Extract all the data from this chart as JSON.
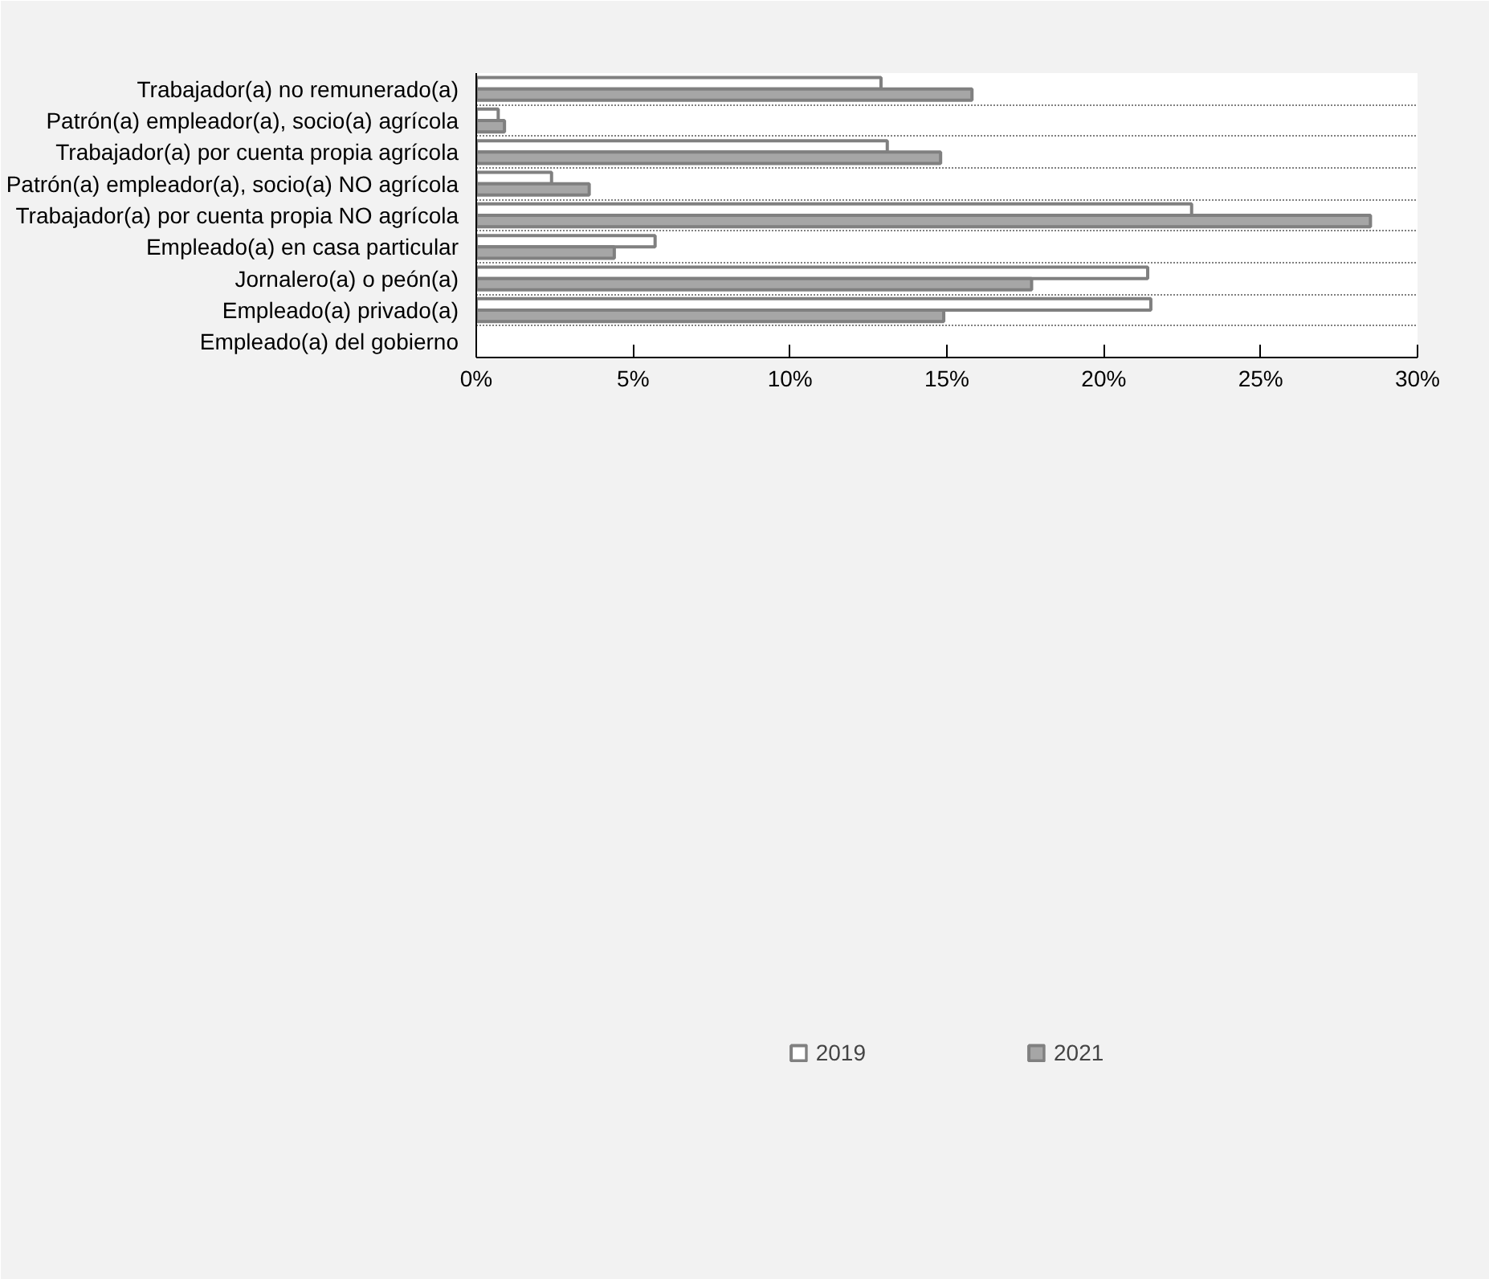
{
  "chart_data": {
    "type": "bar",
    "orientation": "horizontal",
    "categories": [
      "Trabajador(a) no remunerado(a)",
      "Patrón(a) empleador(a), socio(a) agrícola",
      "Trabajador(a) por cuenta propia agrícola",
      "Patrón(a) empleador(a), socio(a) NO agrícola",
      "Trabajador(a) por cuenta propia NO agrícola",
      "Empleado(a) en casa particular",
      "Jornalero(a) o peón(a)",
      "Empleado(a) privado(a)",
      "Empleado(a) del gobierno"
    ],
    "series": [
      {
        "name": "2019",
        "color": "#ffffff",
        "values": [
          12.9,
          0.7,
          13.1,
          2.4,
          22.8,
          5.7,
          21.4,
          21.5,
          null
        ]
      },
      {
        "name": "2021",
        "color": "#a6a6a6",
        "values": [
          15.8,
          0.9,
          14.8,
          3.6,
          28.5,
          4.4,
          17.7,
          14.9,
          null
        ]
      }
    ],
    "xlim": [
      0,
      30
    ],
    "xticks": [
      {
        "value": 0,
        "label": "0%"
      },
      {
        "value": 5,
        "label": "5%"
      },
      {
        "value": 10,
        "label": "10%"
      },
      {
        "value": 15,
        "label": "15%"
      },
      {
        "value": 20,
        "label": "20%"
      },
      {
        "value": 25,
        "label": "25%"
      },
      {
        "value": 30,
        "label": "30%"
      }
    ],
    "grid": "y",
    "legend": "bottom"
  }
}
